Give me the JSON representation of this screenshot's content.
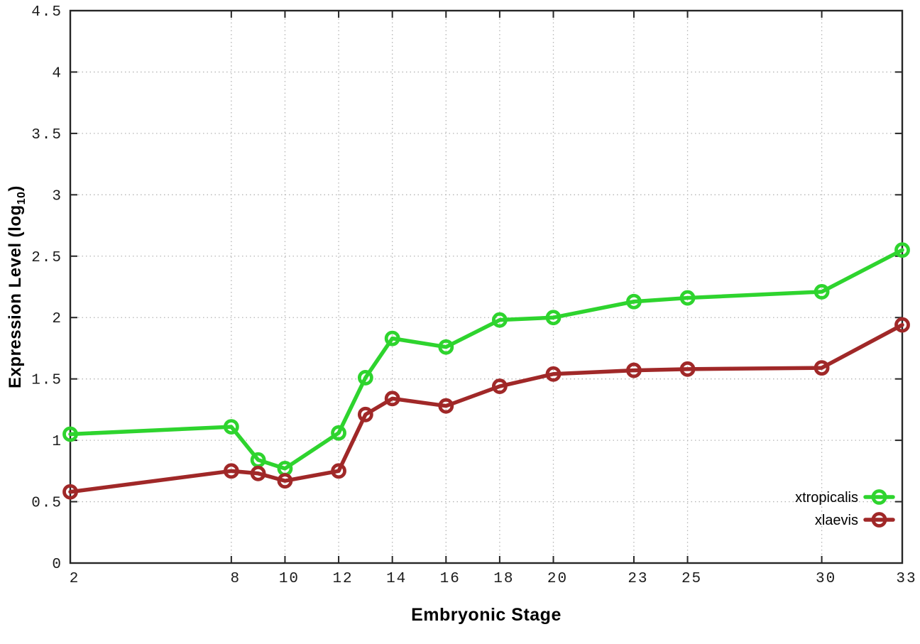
{
  "labels": {
    "xlabel": "Embryonic Stage",
    "ylabel_prefix": "Expression Level (log",
    "ylabel_sub": "10",
    "ylabel_suffix": ")"
  },
  "chart_data": {
    "type": "line",
    "title": "",
    "xlabel": "Embryonic Stage",
    "ylabel": "Expression Level (log10)",
    "x": [
      2,
      8,
      9,
      10,
      12,
      13,
      14,
      16,
      18,
      20,
      23,
      25,
      30,
      33
    ],
    "series": [
      {
        "name": "xtropicalis",
        "color": "#2ed42e",
        "marker": "open-circle",
        "values": [
          1.05,
          1.11,
          0.84,
          0.77,
          1.06,
          1.51,
          1.83,
          1.76,
          1.98,
          2.0,
          2.13,
          2.16,
          2.21,
          2.55
        ]
      },
      {
        "name": "xlaevis",
        "color": "#a02828",
        "marker": "open-circle",
        "values": [
          0.58,
          0.75,
          0.73,
          0.67,
          0.75,
          1.21,
          1.34,
          1.28,
          1.44,
          1.54,
          1.57,
          1.58,
          1.59,
          1.94
        ]
      }
    ],
    "xticks": [
      2,
      8,
      10,
      12,
      14,
      16,
      18,
      20,
      23,
      25,
      30,
      33
    ],
    "yticks": [
      0,
      0.5,
      1,
      1.5,
      2,
      2.5,
      3,
      3.5,
      4,
      4.5
    ],
    "xlim": [
      2,
      33
    ],
    "ylim": [
      0,
      4.5
    ],
    "grid": true,
    "grid_style": "dotted",
    "legend_position": "inside-right-lower",
    "colors": {
      "axis": "#262626",
      "grid": "#b5b5b5",
      "tick_text": "#1c1c1c",
      "background": "#ffffff"
    }
  }
}
